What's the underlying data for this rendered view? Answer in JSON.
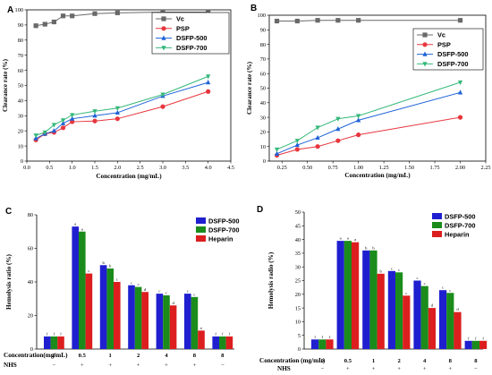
{
  "colors": {
    "Vc": "#696969",
    "PSP": "#e8363d",
    "DSFP-500": "#1e62d8",
    "DSFP-700": "#34b87a",
    "bar_DSFP-500": "#1f1fd0",
    "bar_DSFP-700": "#1b8c1b",
    "bar_Heparin": "#dc1e1e"
  },
  "chart_data": [
    {
      "panel": "A",
      "type": "line",
      "xlabel": "Concentration (mg/mL)",
      "ylabel": "Clearance rate (%)",
      "xlim": [
        0,
        4.5
      ],
      "ylim": [
        0,
        100
      ],
      "xticks": [
        "0.0",
        "0.5",
        "1.0",
        "1.5",
        "2.0",
        "2.5",
        "3.0",
        "3.5",
        "4.0",
        "4.5"
      ],
      "yticks": [
        "0",
        "10",
        "20",
        "30",
        "40",
        "50",
        "60",
        "70",
        "80",
        "90",
        "100"
      ],
      "legend_position": "top-right",
      "series": [
        {
          "name": "Vc",
          "marker": "square",
          "x": [
            0.2,
            0.4,
            0.6,
            0.8,
            1.0,
            1.5,
            2.0,
            3.0,
            4.0
          ],
          "y": [
            89.5,
            90.5,
            92,
            96,
            96,
            97.5,
            98,
            98.5,
            98.5
          ]
        },
        {
          "name": "PSP",
          "marker": "circle",
          "x": [
            0.2,
            0.4,
            0.6,
            0.8,
            1.0,
            1.5,
            2.0,
            3.0,
            4.0
          ],
          "y": [
            14,
            18,
            19,
            22,
            26,
            26.5,
            28,
            36,
            46
          ]
        },
        {
          "name": "DSFP-500",
          "marker": "triangle-up",
          "x": [
            0.2,
            0.4,
            0.6,
            0.8,
            1.0,
            1.5,
            2.0,
            3.0,
            4.0
          ],
          "y": [
            15,
            18,
            20,
            25,
            28,
            30,
            32,
            43,
            52
          ]
        },
        {
          "name": "DSFP-700",
          "marker": "triangle-down",
          "x": [
            0.2,
            0.4,
            0.6,
            0.8,
            1.0,
            1.5,
            2.0,
            3.0,
            4.0
          ],
          "y": [
            17,
            19,
            24,
            27,
            30.5,
            33,
            35,
            44,
            56
          ]
        }
      ]
    },
    {
      "panel": "B",
      "type": "line",
      "xlabel": "Concentration (mg/mL)",
      "ylabel": "Clearance rate (%)",
      "xlim": [
        0.125,
        2.25
      ],
      "ylim": [
        0,
        100
      ],
      "xticks": [
        "0.25",
        "0.50",
        "0.75",
        "1.00",
        "1.25",
        "1.50",
        "1.75",
        "2.00",
        "2.25"
      ],
      "yticks": [
        "0",
        "10",
        "20",
        "30",
        "40",
        "50",
        "60",
        "70",
        "80",
        "90",
        "100"
      ],
      "legend_position": "top-right",
      "series": [
        {
          "name": "Vc",
          "marker": "square",
          "x": [
            0.2,
            0.4,
            0.6,
            0.8,
            1.0,
            2.0
          ],
          "y": [
            96,
            96,
            96.5,
            96.5,
            96.5,
            96.5
          ]
        },
        {
          "name": "PSP",
          "marker": "circle",
          "x": [
            0.2,
            0.4,
            0.6,
            0.8,
            1.0,
            2.0
          ],
          "y": [
            4,
            8,
            10,
            14,
            18,
            30
          ]
        },
        {
          "name": "DSFP-500",
          "marker": "triangle-up",
          "x": [
            0.2,
            0.4,
            0.6,
            0.8,
            1.0,
            2.0
          ],
          "y": [
            5,
            11,
            16,
            22,
            28,
            47
          ]
        },
        {
          "name": "DSFP-700",
          "marker": "triangle-down",
          "x": [
            0.2,
            0.4,
            0.6,
            0.8,
            1.0,
            2.0
          ],
          "y": [
            8,
            14,
            23,
            29,
            31,
            54
          ]
        }
      ]
    },
    {
      "panel": "C",
      "type": "bar",
      "ylabel": "Hemolysis ratio (%)",
      "ylim": [
        0,
        80
      ],
      "yticks": [
        "0",
        "20",
        "40",
        "60",
        "80"
      ],
      "row_label_conc": "Concentration(mg/mL)",
      "row_label_nhs": "NHS",
      "categories": [
        "0",
        "0.5",
        "1",
        "2",
        "4",
        "8",
        "8"
      ],
      "nhs": [
        "−",
        "+",
        "+",
        "+",
        "+",
        "+",
        "−"
      ],
      "legend_position": "top-right",
      "series": [
        {
          "name": "DSFP-500",
          "values": [
            7.5,
            73,
            50,
            38,
            33,
            33,
            7.5
          ],
          "letters": [
            "f",
            "a",
            "b",
            "c",
            "c",
            "c",
            "f"
          ]
        },
        {
          "name": "DSFP-700",
          "values": [
            7.5,
            70,
            48,
            37,
            32,
            31,
            7.5
          ],
          "letters": [
            "f",
            "a",
            "b",
            "c",
            "c",
            "c",
            "f"
          ]
        },
        {
          "name": "Heparin",
          "values": [
            7.5,
            45,
            40,
            34,
            26,
            11,
            7.5
          ],
          "letters": [
            "f",
            "c",
            "c",
            "d",
            "d",
            "e",
            "f"
          ]
        }
      ]
    },
    {
      "panel": "D",
      "type": "bar",
      "ylabel": "Hemolysis radio (%)",
      "ylim": [
        0,
        50
      ],
      "yticks": [
        "0",
        "5",
        "10",
        "15",
        "20",
        "25",
        "30",
        "35",
        "40",
        "45",
        "50"
      ],
      "row_label_conc": "Concentration (mg/mL)",
      "row_label_nhs": "NHS",
      "categories": [
        "0",
        "0.5",
        "1",
        "2",
        "4",
        "8",
        "8"
      ],
      "nhs": [
        "−",
        "+",
        "+",
        "+",
        "+",
        "+",
        "−"
      ],
      "legend_position": "top-right",
      "series": [
        {
          "name": "DSFP-500",
          "values": [
            3.5,
            39.5,
            36,
            28.5,
            25,
            21.5,
            3
          ],
          "letters": [
            "f",
            "a",
            "b",
            "c",
            "c",
            "c",
            "f"
          ]
        },
        {
          "name": "DSFP-700",
          "values": [
            3.5,
            39.5,
            36,
            28,
            23,
            20.5,
            3
          ],
          "letters": [
            "f",
            "a",
            "b",
            "c",
            "c",
            "c",
            "f"
          ]
        },
        {
          "name": "Heparin",
          "values": [
            3.5,
            39,
            27.5,
            19.5,
            15,
            13.5,
            3
          ],
          "letters": [
            "f",
            "a",
            "b",
            "c",
            "d",
            "d",
            "f"
          ]
        }
      ]
    }
  ]
}
